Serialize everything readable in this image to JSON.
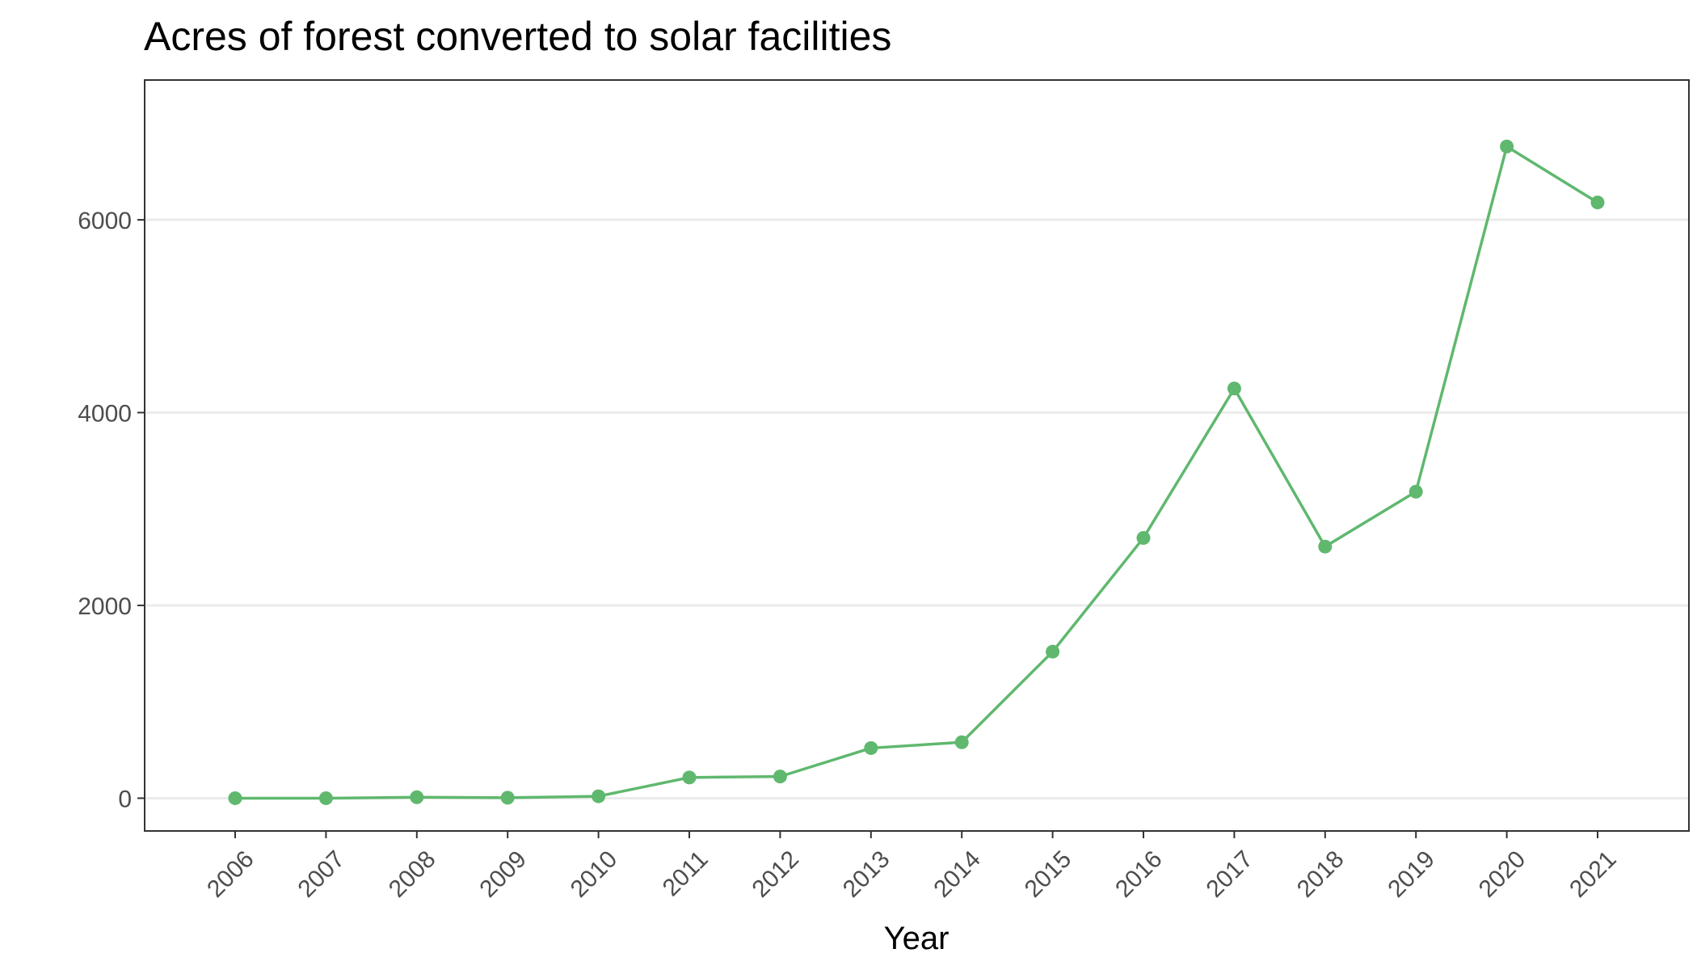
{
  "chart_data": {
    "type": "line",
    "title": "Acres of forest converted to solar facilities",
    "xlabel": "Year",
    "ylabel": "",
    "categories": [
      "2006",
      "2007",
      "2008",
      "2009",
      "2010",
      "2011",
      "2012",
      "2013",
      "2014",
      "2015",
      "2016",
      "2017",
      "2018",
      "2019",
      "2020",
      "2021"
    ],
    "values": [
      0,
      0,
      10,
      5,
      20,
      215,
      225,
      520,
      580,
      1520,
      2700,
      4250,
      2610,
      3180,
      6760,
      6180
    ],
    "ylim": [
      -340,
      7450
    ],
    "yticks": [
      0,
      2000,
      4000,
      6000
    ],
    "ytick_labels": [
      "0",
      "2000",
      "4000",
      "6000"
    ],
    "grid": "horizontal-major",
    "legend": "none",
    "colors": {
      "series": "#5fb86e",
      "grid": "#ebebeb",
      "border": "#333333",
      "tick_text": "#4d4d4d"
    }
  }
}
